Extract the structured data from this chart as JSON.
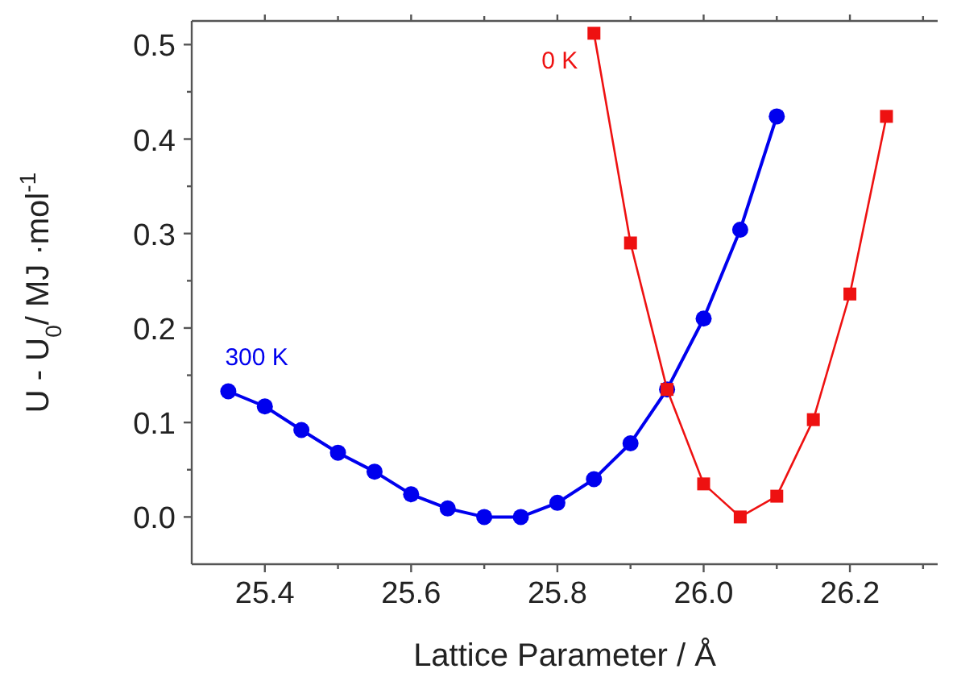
{
  "chart_data": {
    "type": "line",
    "xlabel": "Lattice Parameter / Å",
    "ylabel": "U - U$_{0}$/ MJ ·mol$^{-1}$",
    "xlim": [
      25.3,
      26.32
    ],
    "ylim": [
      -0.05,
      0.525
    ],
    "xticks": [
      25.4,
      25.6,
      25.8,
      {
        "value": 26.0,
        "label": "26.0"
      },
      26.2
    ],
    "yticks": [
      {
        "value": 0,
        "label": "0.0"
      },
      0.1,
      0.2,
      0.3,
      0.4,
      0.5
    ],
    "grid": false,
    "series": [
      {
        "name": "300 K",
        "color": "#0000ee",
        "marker": "circle",
        "x": [
          25.35,
          25.4,
          25.45,
          25.5,
          25.55,
          25.6,
          25.65,
          25.7,
          25.75,
          25.8,
          25.85,
          25.9,
          25.95,
          26.0,
          26.05,
          26.1
        ],
        "values": [
          0.133,
          0.117,
          0.092,
          0.068,
          0.048,
          0.024,
          0.009,
          0.0,
          0.0,
          0.015,
          0.04,
          0.078,
          0.135,
          0.21,
          0.304,
          0.424
        ]
      },
      {
        "name": "0 K",
        "color": "#ee1111",
        "marker": "square",
        "x": [
          25.85,
          25.9,
          25.95,
          26.0,
          26.05,
          26.1,
          26.15,
          26.2,
          26.25
        ],
        "values": [
          0.512,
          0.29,
          0.135,
          0.035,
          0.0,
          0.022,
          0.103,
          0.236,
          0.424
        ]
      }
    ]
  }
}
